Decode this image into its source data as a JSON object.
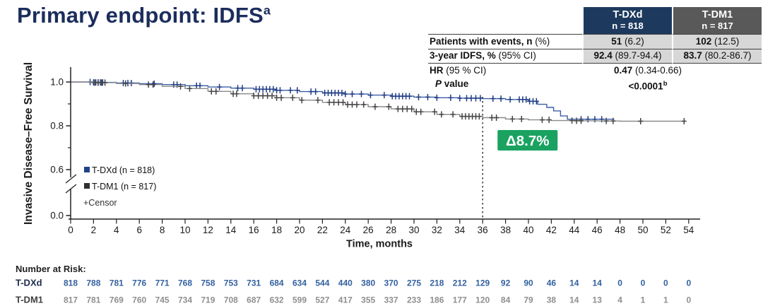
{
  "title": {
    "text": "Primary endpoint: IDFS",
    "sup": "a"
  },
  "stats_table": {
    "columns": [
      {
        "name": "T-DXd",
        "n": "n = 818",
        "bg": "#1d3a5e"
      },
      {
        "name": "T-DM1",
        "n": "n = 817",
        "bg": "#595959"
      }
    ],
    "rows": [
      {
        "label_bold": "Patients with events, n",
        "label_rest": " (%)",
        "v1_bold": "51",
        "v1_rest": " (6.2)",
        "v2_bold": "102",
        "v2_rest": " (12.5)"
      },
      {
        "label_bold": "3-year IDFS, %",
        "label_rest": " (95% CI)",
        "v1_bold": "92.4",
        "v1_rest": " (89.7-94.4)",
        "v2_bold": "83.7",
        "v2_rest": " (80.2-86.7)"
      }
    ],
    "hr_row": {
      "label_bold": "HR",
      "label_rest": " (95 % CI)",
      "value_bold": "0.47",
      "value_rest": " (0.34-0.66)"
    },
    "p_row": {
      "label_italic": "P",
      "label_rest": " value",
      "value": "<0.0001",
      "value_sup": "b"
    }
  },
  "chart_data": {
    "type": "line",
    "subtype": "kaplan-meier-step",
    "title": "Primary endpoint: IDFS",
    "xlabel": "Time, months",
    "ylabel": "Invasive Disease–Free Survival",
    "xlim": [
      0,
      54
    ],
    "x_ticks": [
      0,
      2,
      4,
      6,
      8,
      10,
      12,
      14,
      16,
      18,
      20,
      22,
      24,
      26,
      28,
      30,
      32,
      34,
      36,
      38,
      40,
      42,
      44,
      46,
      48,
      50,
      52,
      54
    ],
    "y_ticks": [
      0.0,
      0.6,
      0.8,
      1.0
    ],
    "y_minor_ticks": [
      0.7,
      0.9
    ],
    "y_axis_break_between": [
      0.0,
      0.6
    ],
    "grid": false,
    "legend_position": "lower-left-inside",
    "legend": [
      {
        "marker": "square",
        "color": "#1f4388",
        "label": "T-DXd (n = 818)"
      },
      {
        "marker": "square",
        "color": "#2f2f2f",
        "label": "T-DM1 (n = 817)"
      },
      {
        "marker": "plus",
        "color": "#333333",
        "label": "+Censor"
      }
    ],
    "reference_line": {
      "x": 36,
      "style": "dashed"
    },
    "annotation": {
      "text": "Δ8.7%",
      "bg": "#1ba261",
      "text_color": "#ffffff",
      "at_month": 37.3
    },
    "series": [
      {
        "name": "T-DXd (n = 818)",
        "line_color": "#3c5fa8",
        "censor_color": "#1e3c85",
        "x": [
          0,
          2,
          4,
          6,
          8,
          10,
          12,
          14,
          16,
          18,
          20,
          22,
          24,
          26,
          28,
          30,
          32,
          34,
          36,
          38,
          40,
          40.8,
          41.6,
          42.2,
          42.8,
          43.4,
          47.5
        ],
        "y": [
          1.0,
          0.998,
          0.995,
          0.992,
          0.988,
          0.983,
          0.977,
          0.972,
          0.967,
          0.962,
          0.956,
          0.95,
          0.945,
          0.94,
          0.935,
          0.931,
          0.928,
          0.926,
          0.924,
          0.92,
          0.912,
          0.898,
          0.884,
          0.868,
          0.845,
          0.83,
          0.83
        ],
        "censor_x": [
          1.7,
          2.0,
          2.2,
          2.4,
          2.6,
          2.8,
          4.6,
          5.0,
          5.3,
          7.3,
          9.0,
          9.3,
          11.0,
          11.3,
          13.0,
          14.6,
          15.0,
          16.2,
          16.5,
          16.8,
          17.1,
          17.4,
          17.7,
          18.0,
          18.3,
          19.2,
          19.8,
          21.0,
          21.4,
          22.2,
          22.5,
          22.8,
          23.1,
          23.4,
          23.7,
          24.0,
          24.6,
          25.4,
          26.2,
          27.4,
          28.1,
          28.4,
          28.7,
          29.0,
          29.3,
          29.6,
          30.4,
          31.2,
          32.0,
          33.2,
          34.0,
          34.6,
          35.0,
          35.4,
          35.8,
          36.9,
          37.6,
          38.4,
          39.2,
          39.5,
          39.8,
          40.1,
          40.4,
          40.7,
          44.6,
          45.2,
          45.8,
          46.4
        ]
      },
      {
        "name": "T-DM1 (n = 817)",
        "line_color": "#8a8a8a",
        "censor_color": "#444444",
        "x": [
          0,
          2,
          4,
          6,
          8,
          10,
          12,
          14,
          16,
          18,
          20,
          22,
          24,
          26,
          28,
          30,
          32,
          34,
          36,
          38,
          40,
          42,
          44,
          46,
          48,
          53.6
        ],
        "y": [
          1.0,
          0.997,
          0.993,
          0.988,
          0.98,
          0.97,
          0.957,
          0.946,
          0.937,
          0.928,
          0.917,
          0.907,
          0.897,
          0.887,
          0.877,
          0.864,
          0.852,
          0.843,
          0.837,
          0.831,
          0.827,
          0.824,
          0.823,
          0.822,
          0.821,
          0.821
        ],
        "censor_x": [
          2.1,
          2.4,
          2.7,
          3.0,
          4.8,
          6.8,
          7.2,
          9.6,
          10.4,
          12.3,
          12.7,
          14.2,
          14.5,
          16.0,
          16.4,
          16.8,
          17.2,
          17.6,
          18.0,
          18.4,
          19.4,
          20.2,
          21.6,
          22.6,
          23.0,
          23.4,
          23.8,
          24.2,
          24.6,
          25.0,
          25.6,
          26.6,
          27.8,
          28.6,
          29.0,
          29.4,
          29.8,
          30.2,
          30.6,
          31.8,
          32.4,
          33.4,
          34.2,
          34.5,
          34.8,
          35.1,
          35.4,
          35.7,
          36.8,
          37.2,
          38.6,
          39.4,
          41.2,
          41.8,
          43.8,
          44.2,
          44.6,
          46.8,
          47.4,
          49.8,
          53.6
        ]
      }
    ],
    "number_at_risk": {
      "label": "Number at Risk:",
      "rows": [
        {
          "name": "T-DXd",
          "label_color": "#1c2b4a",
          "value_color": "#33619f",
          "values": [
            818,
            788,
            781,
            776,
            771,
            768,
            758,
            753,
            731,
            684,
            634,
            544,
            440,
            380,
            370,
            275,
            218,
            212,
            129,
            92,
            90,
            46,
            14,
            14,
            0,
            0,
            0,
            0
          ]
        },
        {
          "name": "T-DM1",
          "label_color": "#3f3f3f",
          "value_color": "#8f8f8f",
          "values": [
            817,
            781,
            769,
            760,
            745,
            734,
            719,
            708,
            687,
            632,
            599,
            527,
            417,
            355,
            337,
            233,
            186,
            177,
            120,
            84,
            79,
            38,
            14,
            13,
            4,
            1,
            1,
            0
          ]
        }
      ]
    }
  }
}
